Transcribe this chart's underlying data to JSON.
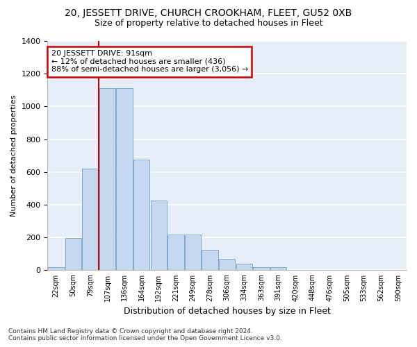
{
  "title": "20, JESSETT DRIVE, CHURCH CROOKHAM, FLEET, GU52 0XB",
  "subtitle": "Size of property relative to detached houses in Fleet",
  "xlabel": "Distribution of detached houses by size in Fleet",
  "ylabel": "Number of detached properties",
  "footer_line1": "Contains HM Land Registry data © Crown copyright and database right 2024.",
  "footer_line2": "Contains public sector information licensed under the Open Government Licence v3.0.",
  "annotation_line1": "20 JESSETT DRIVE: 91sqm",
  "annotation_line2": "← 12% of detached houses are smaller (436)",
  "annotation_line3": "88% of semi-detached houses are larger (3,056) →",
  "bar_labels": [
    "22sqm",
    "50sqm",
    "79sqm",
    "107sqm",
    "136sqm",
    "164sqm",
    "192sqm",
    "221sqm",
    "249sqm",
    "278sqm",
    "306sqm",
    "334sqm",
    "363sqm",
    "391sqm",
    "420sqm",
    "448sqm",
    "476sqm",
    "505sqm",
    "533sqm",
    "562sqm",
    "590sqm"
  ],
  "bar_values": [
    20,
    195,
    620,
    1110,
    1110,
    675,
    425,
    220,
    220,
    125,
    70,
    40,
    20,
    20,
    0,
    0,
    0,
    0,
    0,
    0,
    0
  ],
  "bar_color": "#c5d8f0",
  "bar_edgecolor": "#7aadd4",
  "background_color": "#e8eef8",
  "grid_color": "#ffffff",
  "vline_x": 2.5,
  "vline_color": "#cc0000",
  "annotation_box_color": "#cc0000",
  "ylim": [
    0,
    1400
  ],
  "yticks": [
    0,
    200,
    400,
    600,
    800,
    1000,
    1200,
    1400
  ],
  "figsize": [
    6.0,
    5.0
  ],
  "dpi": 100
}
